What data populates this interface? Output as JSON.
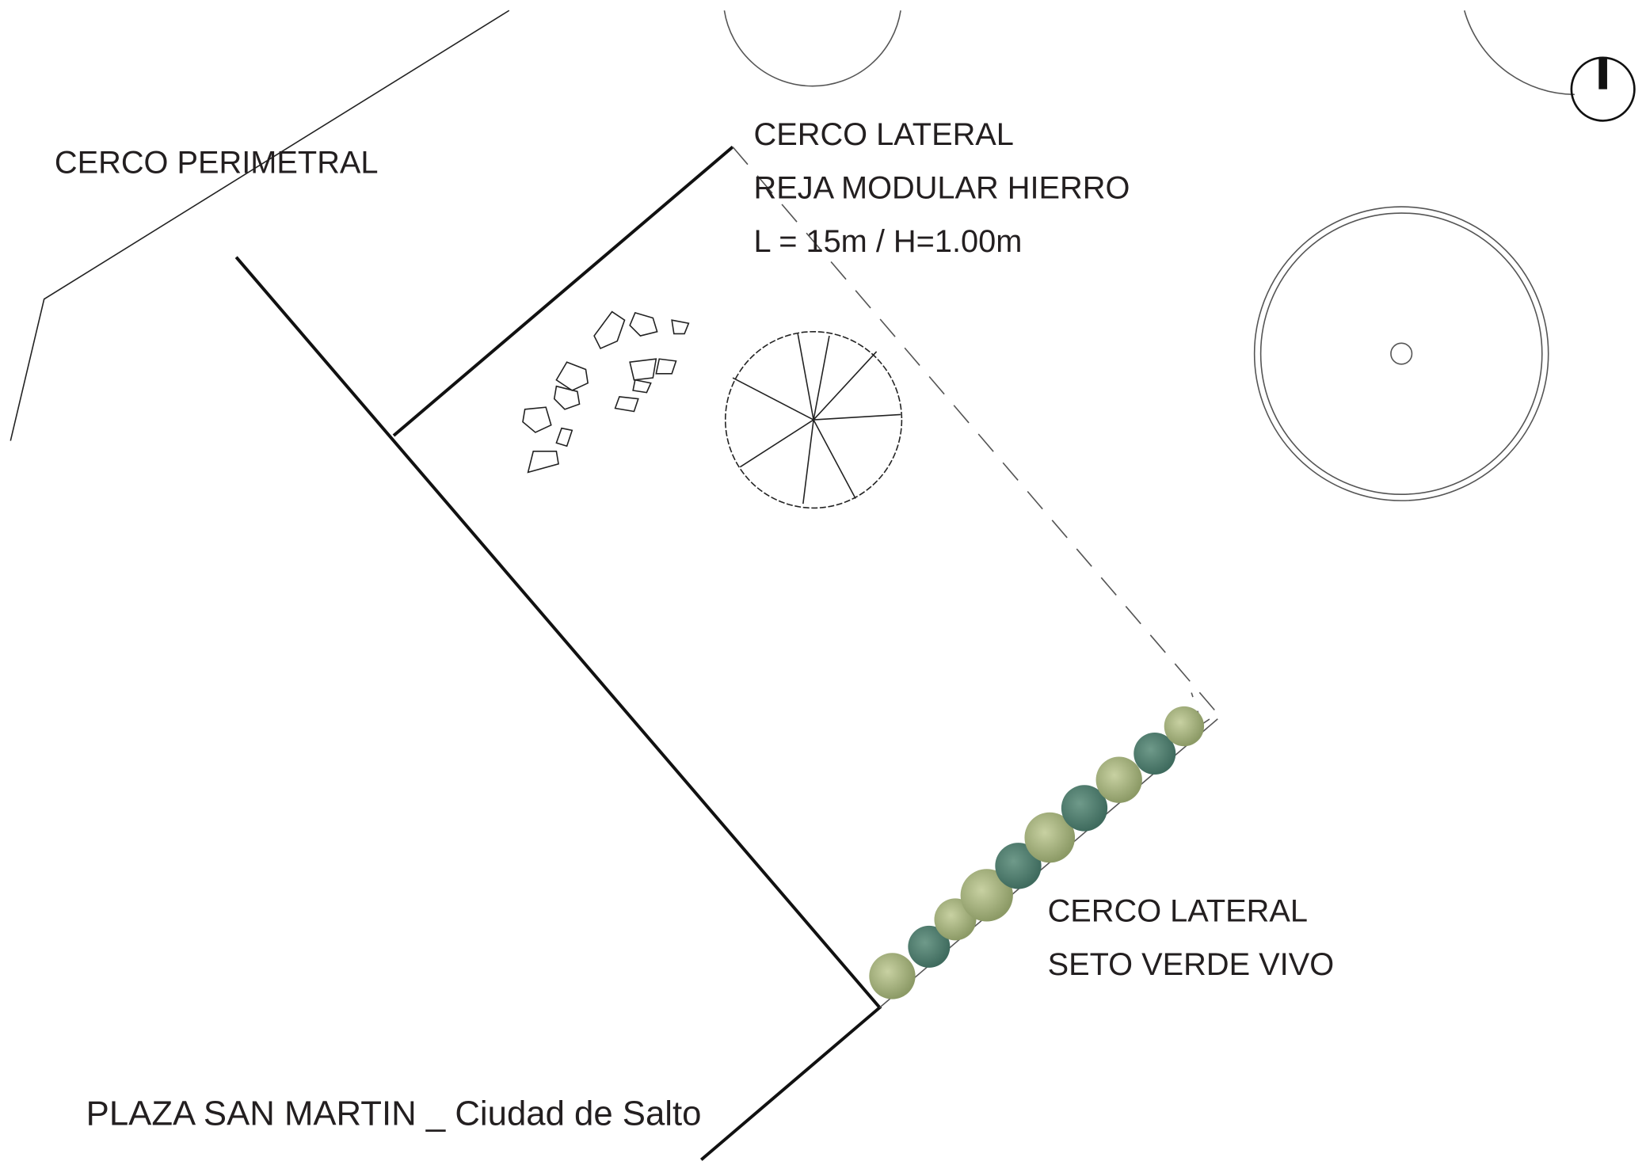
{
  "labels": {
    "perimeter": "CERCO PERIMETRAL",
    "lateral_fence": [
      "CERCO LATERAL",
      "REJA MODULAR HIERRO",
      "L = 15m / H=1.00m"
    ],
    "hedge": [
      "CERCO LATERAL",
      "SETO VERDE VIVO"
    ],
    "footer": "PLAZA SAN MARTIN _ Ciudad de Salto"
  }
}
